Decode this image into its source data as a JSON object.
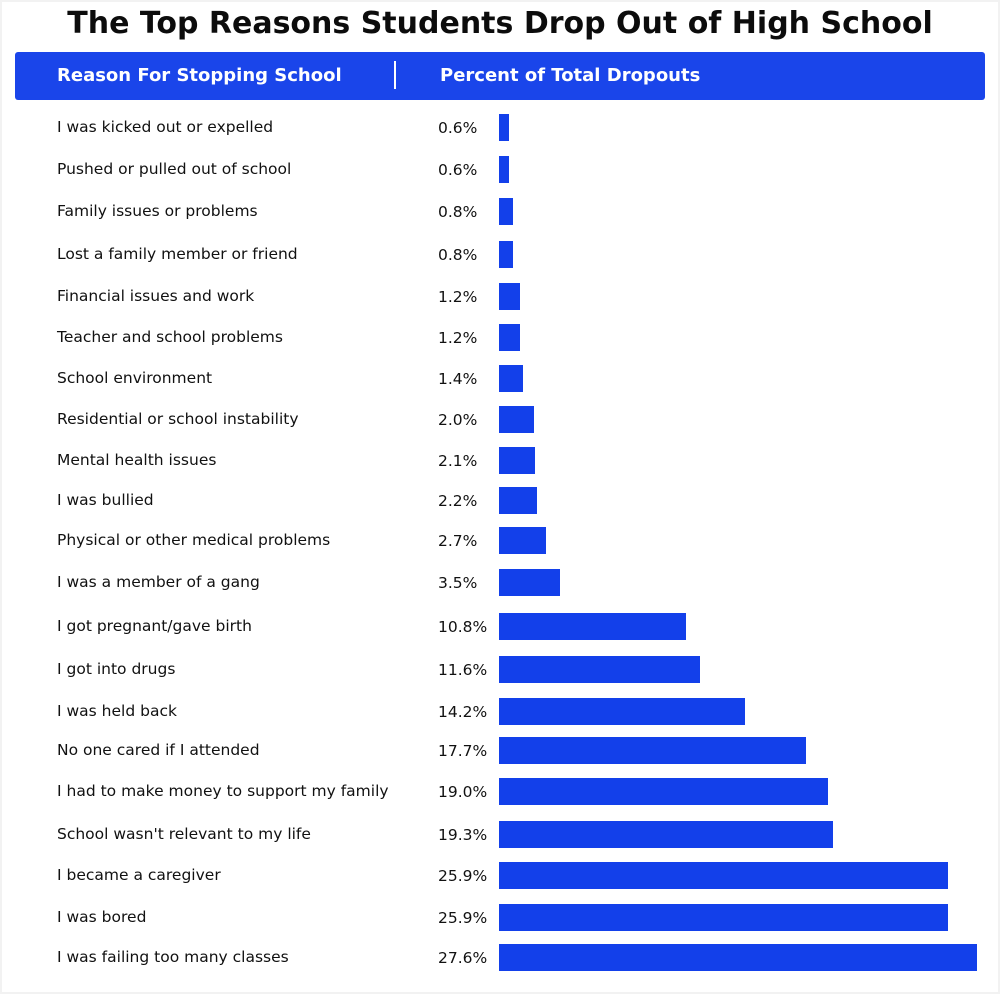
{
  "title": "The Top Reasons Students Drop Out of High School",
  "header": {
    "reason_label": "Reason For Stopping School",
    "percent_label": "Percent of Total Dropouts"
  },
  "colors": {
    "bar": "#1340ea",
    "header_bg": "#1a45ea"
  },
  "chart_data": {
    "type": "bar",
    "orientation": "horizontal",
    "title": "The Top Reasons Students Drop Out of High School",
    "xlabel": "Percent of Total Dropouts",
    "ylabel": "Reason For Stopping School",
    "xlim": [
      0,
      27.6
    ],
    "categories": [
      "I was kicked out or expelled",
      "Pushed or pulled out of school",
      "Family issues or problems",
      "Lost a family member or friend",
      "Financial issues and work",
      "Teacher and school problems",
      "School environment",
      "Residential or school instability",
      "Mental health issues",
      "I was bullied",
      "Physical or other medical problems",
      "I was a member of a gang",
      "I got pregnant/gave birth",
      "I got into drugs",
      "I was held back",
      "No one cared if I attended",
      "I had to make money to support my family",
      "School wasn't relevant to my life",
      "I became a caregiver",
      "I was bored",
      "I was failing too many classes"
    ],
    "values": [
      0.6,
      0.6,
      0.8,
      0.8,
      1.2,
      1.2,
      1.4,
      2.0,
      2.1,
      2.2,
      2.7,
      3.5,
      10.8,
      11.6,
      14.2,
      17.7,
      19.0,
      19.3,
      25.9,
      25.9,
      27.6
    ],
    "value_labels": [
      "0.6%",
      "0.6%",
      "0.8%",
      "0.8%",
      "1.2%",
      "1.2%",
      "1.4%",
      "2.0%",
      "2.1%",
      "2.2%",
      "2.7%",
      "3.5%",
      "10.8%",
      "11.6%",
      "14.2%",
      "17.7%",
      "19.0%",
      "19.3%",
      "25.9%",
      "25.9%",
      "27.6%"
    ]
  }
}
